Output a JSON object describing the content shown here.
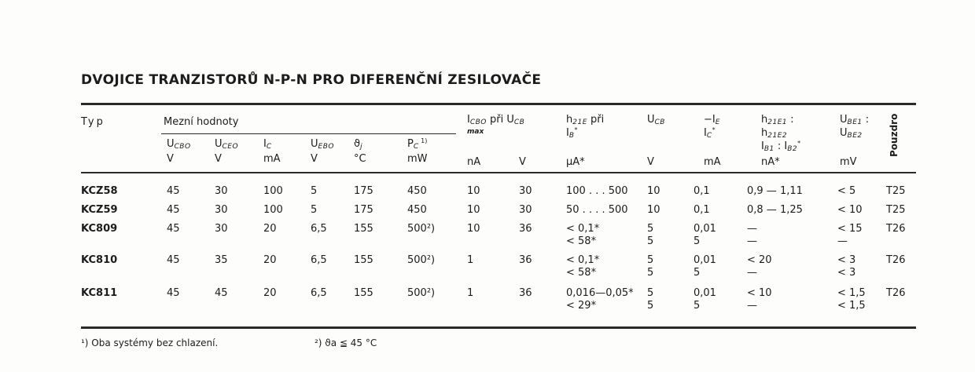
{
  "title": "DVOJICE TRANZISTORŮ N-P-N PRO DIFERENČNÍ ZESILOVAČE",
  "header": {
    "typ": "Typ",
    "group_mezni": "Mezní hodnoty",
    "columns": [
      {
        "main": "U",
        "sub": "CBO",
        "unit": "V"
      },
      {
        "main": "U",
        "sub": "CEO",
        "unit": "V"
      },
      {
        "main": "I",
        "sub": "C",
        "unit": "mA"
      },
      {
        "main": "U",
        "sub": "EBO",
        "unit": "V"
      },
      {
        "main": "ϑ",
        "sub": "j",
        "unit": "°C"
      },
      {
        "main": "P",
        "sub": "C",
        "sup": " 1)",
        "unit": "mW"
      },
      {
        "main": "I",
        "sub": "CBO",
        "extra": " při U",
        "sub2": "CB",
        "line2": "max",
        "unit": "nA"
      },
      {
        "unit": "V"
      },
      {
        "main": "h",
        "sub": "21E",
        "extra": "   při",
        "line2main": "I",
        "line2sub": "B",
        "line2sup": "*",
        "unit": "μA*"
      },
      {
        "main": "U",
        "sub": "CB",
        "unit": "V"
      },
      {
        "main": "−I",
        "sub": "E",
        "line2main": "I",
        "line2sub": "C",
        "line2sup": "*",
        "unit": "mA"
      },
      {
        "main": "h",
        "sub": "21E1",
        "extra": " :",
        "line2main": "h",
        "line2sub": "21E2",
        "line3": "I",
        "line3sub": "B1",
        "line3mid": " : I",
        "line3sub2": "B2",
        "line3sup": "*",
        "unit": "nA*"
      },
      {
        "main": "U",
        "sub": "BE1",
        "extra": " :",
        "line2main": "U",
        "line2sub": "BE2",
        "unit": "mV"
      }
    ],
    "pouzdro": "Pouzdro"
  },
  "rows": [
    {
      "typ": "KCZ58",
      "cells": [
        [
          "45"
        ],
        [
          "30"
        ],
        [
          "100"
        ],
        [
          "5"
        ],
        [
          "175"
        ],
        [
          "450"
        ],
        [
          "10"
        ],
        [
          "30"
        ],
        [
          "100 . . . 500"
        ],
        [
          "10"
        ],
        [
          "0,1"
        ],
        [
          "0,9 — 1,11"
        ],
        [
          "< 5"
        ],
        [
          "T25"
        ]
      ]
    },
    {
      "typ": "KCZ59",
      "cells": [
        [
          "45"
        ],
        [
          "30"
        ],
        [
          "100"
        ],
        [
          "5"
        ],
        [
          "175"
        ],
        [
          "450"
        ],
        [
          "10"
        ],
        [
          "30"
        ],
        [
          "50 . . . . 500"
        ],
        [
          "10"
        ],
        [
          "0,1"
        ],
        [
          "0,8 — 1,25"
        ],
        [
          "< 10"
        ],
        [
          "T25"
        ]
      ]
    },
    {
      "typ": "KC809",
      "cells": [
        [
          "45"
        ],
        [
          "30"
        ],
        [
          "20"
        ],
        [
          "6,5"
        ],
        [
          "155"
        ],
        [
          "500²)"
        ],
        [
          "10"
        ],
        [
          "36"
        ],
        [
          "< 0,1*",
          "< 58*"
        ],
        [
          "5",
          "5"
        ],
        [
          "0,01",
          "5"
        ],
        [
          "—",
          "—"
        ],
        [
          "< 15",
          "—"
        ],
        [
          "T26"
        ]
      ]
    },
    {
      "typ": "KC810",
      "cells": [
        [
          "45"
        ],
        [
          "35"
        ],
        [
          "20"
        ],
        [
          "6,5"
        ],
        [
          "155"
        ],
        [
          "500²)"
        ],
        [
          "1"
        ],
        [
          "36"
        ],
        [
          "< 0,1*",
          "< 58*"
        ],
        [
          "5",
          "5"
        ],
        [
          "0,01",
          "5"
        ],
        [
          "< 20",
          "—"
        ],
        [
          "< 3",
          "< 3"
        ],
        [
          "T26"
        ]
      ]
    },
    {
      "typ": "KC811",
      "cells": [
        [
          "45"
        ],
        [
          "45"
        ],
        [
          "20"
        ],
        [
          "6,5"
        ],
        [
          "155"
        ],
        [
          "500²)"
        ],
        [
          "1"
        ],
        [
          "36"
        ],
        [
          "0,016—0,05*",
          "< 29*"
        ],
        [
          "5",
          "5"
        ],
        [
          "0,01",
          "5"
        ],
        [
          "< 10",
          "—"
        ],
        [
          "< 1,5",
          "< 1,5"
        ],
        [
          "T26"
        ]
      ]
    }
  ],
  "footnotes": [
    "¹) Oba systémy bez chlazení.",
    "²) ϑa ≦ 45 °C"
  ]
}
